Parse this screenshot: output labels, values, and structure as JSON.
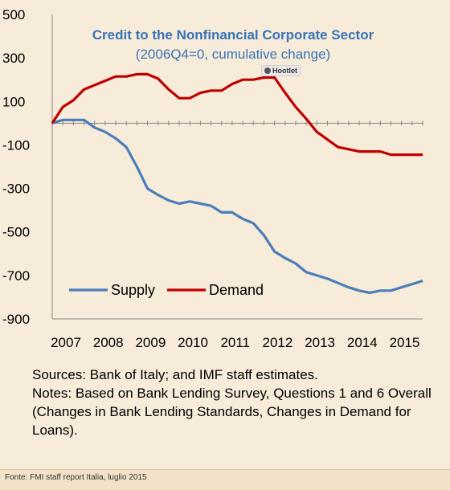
{
  "chart_data": {
    "type": "line",
    "title": "Credit to the Nonfinancial Corporate Sector",
    "subtitle": "(2006Q4=0, cumulative change)",
    "xlabel": "",
    "ylabel": "",
    "ylim": [
      -900,
      500
    ],
    "y_ticks": [
      "500",
      "300",
      "100",
      "-100",
      "-300",
      "-500",
      "-700",
      "-900"
    ],
    "y_tick_values": [
      500,
      300,
      100,
      -100,
      -300,
      -500,
      -700,
      -900
    ],
    "x_tick_labels": [
      "2007",
      "2008",
      "2009",
      "2010",
      "2011",
      "2012",
      "2013",
      "2014",
      "2015"
    ],
    "x_range": [
      2007.0,
      2015.75
    ],
    "grid": false,
    "legend_placement": "bottom-left",
    "series": [
      {
        "name": "Supply",
        "color": "#4a7ebb",
        "x": [
          2007.0,
          2007.25,
          2007.5,
          2007.75,
          2008.0,
          2008.25,
          2008.5,
          2008.75,
          2009.0,
          2009.25,
          2009.5,
          2009.75,
          2010.0,
          2010.25,
          2010.5,
          2010.75,
          2011.0,
          2011.25,
          2011.5,
          2011.75,
          2012.0,
          2012.25,
          2012.5,
          2012.75,
          2013.0,
          2013.25,
          2013.5,
          2013.75,
          2014.0,
          2014.25,
          2014.5,
          2014.75,
          2015.0,
          2015.25,
          2015.5,
          2015.75
        ],
        "values": [
          0,
          15,
          15,
          15,
          -20,
          -40,
          -70,
          -110,
          -200,
          -300,
          -330,
          -355,
          -370,
          -360,
          -370,
          -380,
          -410,
          -410,
          -440,
          -460,
          -515,
          -590,
          -620,
          -645,
          -685,
          -700,
          -715,
          -735,
          -755,
          -770,
          -780,
          -770,
          -770,
          -755,
          -740,
          -725
        ]
      },
      {
        "name": "Demand",
        "color": "#c00000",
        "x": [
          2007.0,
          2007.25,
          2007.5,
          2007.75,
          2008.0,
          2008.25,
          2008.5,
          2008.75,
          2009.0,
          2009.25,
          2009.5,
          2009.75,
          2010.0,
          2010.25,
          2010.5,
          2010.75,
          2011.0,
          2011.25,
          2011.5,
          2011.75,
          2012.0,
          2012.25,
          2012.5,
          2012.75,
          2013.0,
          2013.25,
          2013.5,
          2013.75,
          2014.0,
          2014.25,
          2014.5,
          2014.75,
          2015.0,
          2015.25,
          2015.5,
          2015.75
        ],
        "values": [
          0,
          75,
          105,
          155,
          175,
          195,
          215,
          215,
          225,
          225,
          205,
          155,
          115,
          115,
          140,
          150,
          150,
          180,
          200,
          200,
          210,
          210,
          140,
          75,
          20,
          -40,
          -75,
          -110,
          -120,
          -130,
          -130,
          -130,
          -145,
          -145,
          -145,
          -145
        ]
      }
    ]
  },
  "notes": {
    "sources": "Sources: Bank of Italy; and IMF staff estimates.",
    "notes": "Notes: Based on Bank Lending Survey, Questions 1 and 6 Overall (Changes in Bank Lending Standards, Changes in Demand for Loans)."
  },
  "footer": {
    "source": "Fonte: FMI staff report Italia, luglio 2015"
  },
  "overlay": {
    "hootlet_label": "Hootlet"
  }
}
